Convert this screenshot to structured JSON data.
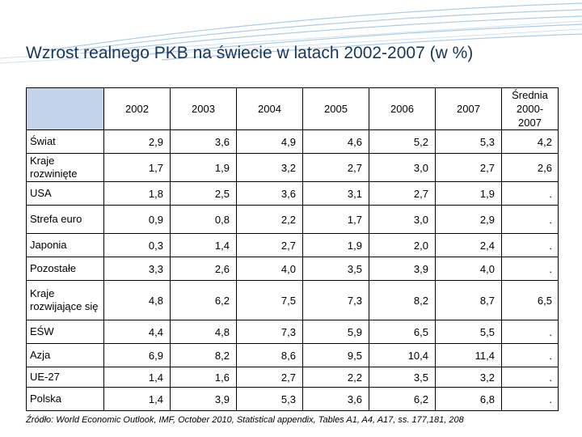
{
  "title": "Wzrost realnego PKB na świecie w latach 2002-2007 (w %)",
  "table": {
    "columns": [
      "2002",
      "2003",
      "2004",
      "2005",
      "2006",
      "2007"
    ],
    "avg_header_line1": "Średnia",
    "avg_header_line2": "2000-2007",
    "rows": [
      {
        "label": "Świat",
        "values": [
          "2,9",
          "3,6",
          "4,9",
          "4,6",
          "5,2",
          "5,3"
        ],
        "avg": "4,2"
      },
      {
        "label": "Kraje rozwinięte",
        "values": [
          "1,7",
          "1,9",
          "3,2",
          "2,7",
          "3,0",
          "2,7"
        ],
        "avg": "2,6"
      },
      {
        "label": "USA",
        "values": [
          "1,8",
          "2,5",
          "3,6",
          "3,1",
          "2,7",
          "1,9"
        ],
        "avg": "."
      },
      {
        "label": "Strefa euro",
        "values": [
          "0,9",
          "0,8",
          "2,2",
          "1,7",
          "3,0",
          "2,9"
        ],
        "avg": "."
      },
      {
        "label": "Japonia",
        "values": [
          "0,3",
          "1,4",
          "2,7",
          "1,9",
          "2,0",
          "2,4"
        ],
        "avg": "."
      },
      {
        "label": "Pozostałe",
        "values": [
          "3,3",
          "2,6",
          "4,0",
          "3,5",
          "3,9",
          "4,0"
        ],
        "avg": "."
      },
      {
        "label": "Kraje rozwijające się",
        "values": [
          "4,8",
          "6,2",
          "7,5",
          "7,3",
          "8,2",
          "8,7"
        ],
        "avg": "6,5"
      },
      {
        "label": "EŚW",
        "values": [
          "4,4",
          "4,8",
          "7,3",
          "5,9",
          "6,5",
          "5,5"
        ],
        "avg": "."
      },
      {
        "label": "Azja",
        "values": [
          "6,9",
          "8,2",
          "8,6",
          "9,5",
          "10,4",
          "11,4"
        ],
        "avg": "."
      },
      {
        "label": "UE-27",
        "values": [
          "1,4",
          "1,6",
          "2,7",
          "2,2",
          "3,5",
          "3,2"
        ],
        "avg": "."
      },
      {
        "label": "Polska",
        "values": [
          "1,4",
          "3,9",
          "5,3",
          "3,6",
          "6,2",
          "6,8"
        ],
        "avg": "."
      }
    ]
  },
  "source": "Źródło: World Economic Outlook, IMF, October 2010, Statistical appendix, Tables A1, A4, A17, ss. 177,181, 208",
  "colors": {
    "title": "#17375e",
    "header_fill": "#c5d3ea",
    "decor": "#9dc3e6"
  }
}
